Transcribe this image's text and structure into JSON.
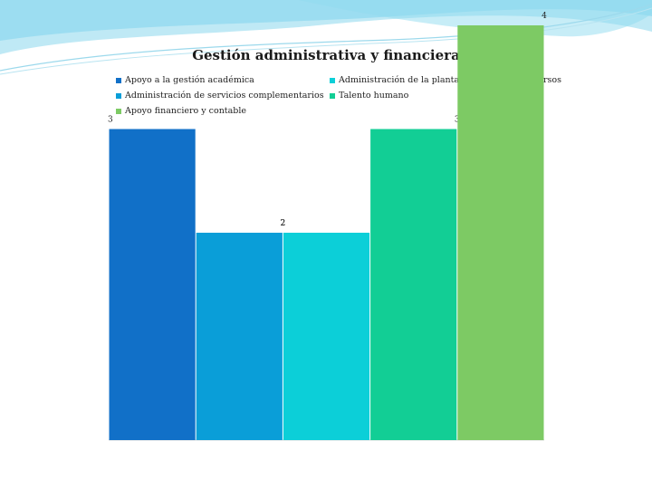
{
  "chart_data": {
    "type": "bar",
    "title": "Gestión administrativa y financiera",
    "categories": [
      "Apoyo a la gestión académica",
      "Administración de servicios complementarios",
      "Apoyo financiero y contable",
      "Administración de la planta física y de los recursos",
      "Talento humano"
    ],
    "series": [
      {
        "name": "Apoyo a la gestión académica",
        "value": 3,
        "color": "#1170c8"
      },
      {
        "name": "Administración de servicios complementarios",
        "value": 2,
        "color": "#0a9ed8"
      },
      {
        "name": "Administración de la planta física y de los recursos",
        "value": 2,
        "color": "#0ccfd8"
      },
      {
        "name": "Talento humano",
        "value": 3,
        "color": "#12ce95"
      },
      {
        "name": "Apoyo financiero y contable",
        "value": 4,
        "color": "#7dca64"
      }
    ],
    "ylim": [
      0,
      4.3
    ],
    "legend_position": "top",
    "grid": false
  },
  "legend": {
    "items": [
      {
        "label": "Apoyo a la gestión académica",
        "color": "#1170c8"
      },
      {
        "label": "Administración de la planta física y de los recursos",
        "color": "#0ccfd8"
      },
      {
        "label": "Administración de servicios complementarios",
        "color": "#0a9ed8"
      },
      {
        "label": "Talento humano",
        "color": "#12ce95"
      },
      {
        "label": "Apoyo financiero y contable",
        "color": "#7dca64"
      }
    ]
  }
}
